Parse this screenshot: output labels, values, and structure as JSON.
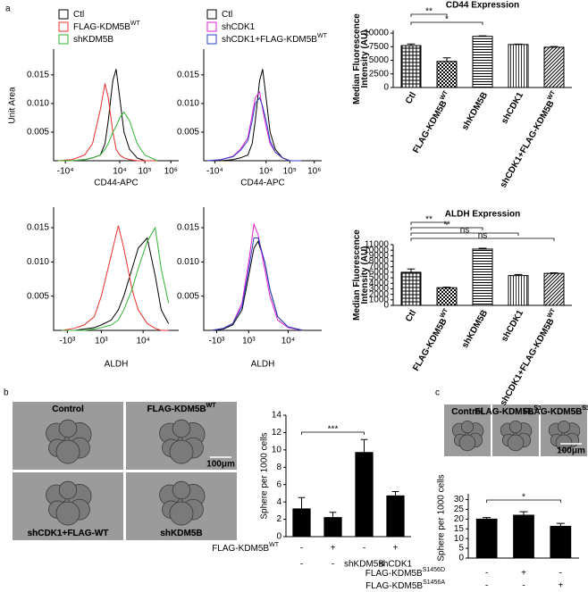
{
  "panel_a": {
    "label": "a"
  },
  "panel_b": {
    "label": "b",
    "images": [
      {
        "label": "Control"
      },
      {
        "label": "FLAG-KDM5B",
        "label_superscript": "WT"
      },
      {
        "label": "shCDK1+FLAG-WT"
      },
      {
        "label": "shKDM5B"
      }
    ],
    "scale_bar": "100μm"
  },
  "panel_c": {
    "label": "c",
    "images": [
      {
        "label": "Control"
      },
      {
        "label": "FLAG-KDM5B",
        "label_superscript": "S1456D"
      },
      {
        "label": "FLAG-KDM5B",
        "label_superscript": "S1456A"
      }
    ],
    "scale_bar": "100μm"
  },
  "chart_data": [
    {
      "type": "line",
      "xlabel": "CD44-APC",
      "ylabel": "Unit Area",
      "xscale": "symlog",
      "xlim": [
        -30000,
        2000000
      ],
      "xticks": [
        {
          "value": -10000,
          "label": "-10⁴"
        },
        {
          "value": 10000,
          "label": "10⁴"
        },
        {
          "value": 100000,
          "label": "10⁵"
        },
        {
          "value": 1000000,
          "label": "10⁶"
        }
      ],
      "ylim": [
        0,
        0.0195
      ],
      "yticks": [
        0.005,
        {
          "value": 0.01,
          "label": "0.010"
        },
        0.015
      ],
      "x": [
        -20000,
        -5000,
        -1000,
        0,
        1000,
        2000,
        3000,
        5000,
        7000,
        10000,
        15000,
        25000,
        50000,
        100000,
        300000
      ],
      "series": [
        {
          "name": "Ctl",
          "color": "#000000",
          "values": [
            0,
            0,
            0.0002,
            0.0005,
            0.001,
            0.003,
            0.007,
            0.014,
            0.016,
            0.011,
            0.005,
            0.002,
            0.0005,
            0,
            0
          ]
        },
        {
          "name": "FLAG-KDM5B",
          "name_superscript": "WT",
          "color": "#e8302c",
          "values": [
            0,
            0.0002,
            0.001,
            0.003,
            0.009,
            0.0135,
            0.011,
            0.005,
            0.002,
            0.001,
            0.0005,
            0.0002,
            0,
            0,
            0
          ]
        },
        {
          "name": "shKDM5B",
          "color": "#33b233",
          "values": [
            0,
            0,
            0.0002,
            0.0005,
            0.001,
            0.002,
            0.003,
            0.005,
            0.006,
            0.0075,
            0.0085,
            0.007,
            0.003,
            0.001,
            0
          ]
        }
      ]
    },
    {
      "type": "line",
      "xlabel": "CD44-APC",
      "xscale": "symlog",
      "xlim": [
        -30000,
        2000000
      ],
      "xticks": [
        {
          "value": -10000,
          "label": "-10⁴"
        },
        {
          "value": 10000,
          "label": "10⁴"
        },
        {
          "value": 100000,
          "label": "10⁵"
        },
        {
          "value": 1000000,
          "label": "10⁶"
        }
      ],
      "ylim": [
        0,
        0.0195
      ],
      "yticks": [
        0.005,
        {
          "value": 0.01,
          "label": "0.010"
        },
        0.015
      ],
      "x": [
        -20000,
        -5000,
        -1000,
        0,
        1000,
        2000,
        3000,
        5000,
        7000,
        10000,
        15000,
        25000,
        50000,
        100000,
        300000
      ],
      "series": [
        {
          "name": "Ctl",
          "color": "#000000",
          "values": [
            0,
            0,
            0.0002,
            0.0005,
            0.001,
            0.003,
            0.007,
            0.014,
            0.016,
            0.011,
            0.005,
            0.002,
            0.0005,
            0,
            0
          ]
        },
        {
          "name": "shCDK1",
          "color": "#e020d0",
          "values": [
            0,
            0.0002,
            0.0008,
            0.002,
            0.004,
            0.008,
            0.011,
            0.012,
            0.009,
            0.006,
            0.003,
            0.0015,
            0.0005,
            0,
            0
          ]
        },
        {
          "name": "shCDK1+FLAG-KDM5B",
          "name_superscript": "WT",
          "color": "#2a3fc8",
          "values": [
            0,
            0.0002,
            0.0007,
            0.0018,
            0.0035,
            0.007,
            0.01,
            0.011,
            0.0095,
            0.007,
            0.0035,
            0.0015,
            0.0005,
            0,
            0
          ]
        }
      ]
    },
    {
      "type": "line",
      "xlabel": "ALDH",
      "xscale": "symlog",
      "xlim": [
        -2500,
        46000
      ],
      "xticks": [
        {
          "value": -1000,
          "label": "-10³"
        },
        {
          "value": 1000,
          "label": "10³"
        },
        {
          "value": 10000,
          "label": "10⁴"
        }
      ],
      "ylim": [
        0,
        0.018
      ],
      "yticks": [
        0.005,
        {
          "value": 0.01,
          "label": "0.010"
        },
        0.015
      ],
      "x": [
        -1500,
        -500,
        0,
        500,
        1000,
        2000,
        3000,
        4000,
        6000,
        8000,
        12000,
        17000,
        22000,
        30000
      ],
      "series": [
        {
          "color": "#000000",
          "values": [
            0,
            0,
            0.0002,
            0.0004,
            0.0008,
            0.0015,
            0.003,
            0.005,
            0.009,
            0.012,
            0.0135,
            0.008,
            0.003,
            0.001
          ]
        },
        {
          "color": "#e8302c",
          "values": [
            0,
            0.0003,
            0.0008,
            0.002,
            0.005,
            0.011,
            0.0153,
            0.012,
            0.006,
            0.003,
            0.001,
            0.0003,
            0,
            0
          ]
        },
        {
          "color": "#33b233",
          "values": [
            0,
            0,
            0,
            0.0002,
            0.0004,
            0.0008,
            0.0015,
            0.003,
            0.006,
            0.009,
            0.013,
            0.015,
            0.009,
            0.004
          ]
        }
      ]
    },
    {
      "type": "line",
      "xlabel": "ALDH",
      "xscale": "symlog",
      "xlim": [
        -2500,
        46000
      ],
      "xticks": [
        {
          "value": -1000,
          "label": "-10³"
        },
        {
          "value": 1000,
          "label": "10³"
        },
        {
          "value": 10000,
          "label": "10⁴"
        }
      ],
      "ylim": [
        0,
        0.018
      ],
      "yticks": [
        0.005,
        {
          "value": 0.01,
          "label": "0.010"
        },
        0.015
      ],
      "x": [
        -1500,
        -500,
        0,
        500,
        1000,
        1500,
        2000,
        3000,
        4000,
        6000,
        10000,
        20000
      ],
      "series": [
        {
          "color": "#000000",
          "values": [
            0,
            0.0002,
            0.0008,
            0.003,
            0.008,
            0.012,
            0.013,
            0.01,
            0.006,
            0.002,
            0.0005,
            0
          ]
        },
        {
          "color": "#e020d0",
          "values": [
            0,
            0.0003,
            0.001,
            0.004,
            0.01,
            0.0155,
            0.014,
            0.009,
            0.005,
            0.0015,
            0.0004,
            0
          ]
        },
        {
          "color": "#2a3fc8",
          "values": [
            0,
            0.0003,
            0.001,
            0.0035,
            0.009,
            0.0135,
            0.0135,
            0.01,
            0.006,
            0.002,
            0.0005,
            0
          ]
        }
      ]
    },
    {
      "type": "bar",
      "title": "CD44 Expression",
      "ylabel": [
        "Median Fluorescence",
        "Intensity (AU)"
      ],
      "categories": [
        "Ctl",
        "FLAG-KDM5B",
        "shKDM5B",
        "shCDK1",
        "shCDK1+FLAG-KDM5B"
      ],
      "category_superscripts": [
        null,
        "WT",
        null,
        null,
        "WT"
      ],
      "values": [
        7700,
        4800,
        9400,
        7900,
        7400
      ],
      "errors": [
        300,
        650,
        100,
        80,
        120
      ],
      "patterns": [
        "crosshatch",
        "checker",
        "hlines",
        "vlines",
        "diagonal"
      ],
      "color": "#000000",
      "ylim": [
        0,
        10500
      ],
      "yticks": [
        0,
        2500,
        5000,
        7500,
        10000
      ],
      "significance": [
        {
          "bars": [
            0,
            1
          ],
          "label": "**"
        },
        {
          "bars": [
            0,
            2
          ],
          "label": "*"
        }
      ]
    },
    {
      "type": "bar",
      "title": "ALDH Expression",
      "ylabel": [
        "Median Fluorescence",
        "Intensity (AU)"
      ],
      "categories": [
        "Ctl",
        "FLAG-KDM5B",
        "shKDM5B",
        "shCDK1",
        "shCDK1+FLAG-KDM5B"
      ],
      "category_superscripts": [
        null,
        "WT",
        null,
        null,
        "WT"
      ],
      "values": [
        6000,
        3200,
        10200,
        5400,
        5800
      ],
      "errors": [
        600,
        100,
        150,
        200,
        100
      ],
      "patterns": [
        "crosshatch",
        "checker",
        "hlines",
        "vlines",
        "diagonal"
      ],
      "color": "#000000",
      "ylim": [
        0,
        11000
      ],
      "yticks": [
        0,
        1000,
        2000,
        3000,
        4000,
        5000,
        6000,
        7000,
        8000,
        9000,
        10000,
        11000
      ],
      "significance": [
        {
          "bars": [
            0,
            1
          ],
          "label": "**"
        },
        {
          "bars": [
            0,
            2
          ],
          "label": "**"
        },
        {
          "bars": [
            0,
            3
          ],
          "label": "ns"
        },
        {
          "bars": [
            0,
            4
          ],
          "label": "ns"
        }
      ]
    },
    {
      "type": "bar",
      "ylabel": "Sphere per 1000 cells",
      "values": [
        3.2,
        2.2,
        9.7,
        4.7
      ],
      "errors": [
        1.3,
        0.6,
        1.5,
        0.5
      ],
      "color": "#000000",
      "ylim": [
        0,
        14
      ],
      "yticks": [
        0,
        2,
        4,
        6,
        8,
        10,
        12,
        14
      ],
      "rows": [
        {
          "label": "FLAG-KDM5B",
          "label_superscript": "WT",
          "cells": [
            "-",
            "+",
            "-",
            "+"
          ]
        },
        {
          "cells": [
            "-",
            "-",
            "shKDM5B",
            "shCDK1"
          ]
        }
      ],
      "significance": [
        {
          "bars": [
            0,
            2
          ],
          "label": "***"
        }
      ]
    },
    {
      "type": "bar",
      "ylabel": "Sphere per 1000 cells",
      "values": [
        20,
        22,
        16.3
      ],
      "errors": [
        0.8,
        1.8,
        1.5
      ],
      "color": "#000000",
      "ylim": [
        0,
        33
      ],
      "yticks": [
        0,
        5,
        10,
        15,
        20,
        25,
        30
      ],
      "rows": [
        {
          "label": "FLAG-KDM5B",
          "label_superscript": "S1456D",
          "cells": [
            "-",
            "+",
            "-"
          ]
        },
        {
          "label": "FLAG-KDM5B",
          "label_superscript": "S1456A",
          "cells": [
            "-",
            "-",
            "+"
          ]
        }
      ],
      "significance": [
        {
          "bars": [
            0,
            2
          ],
          "label": "*"
        }
      ]
    }
  ]
}
